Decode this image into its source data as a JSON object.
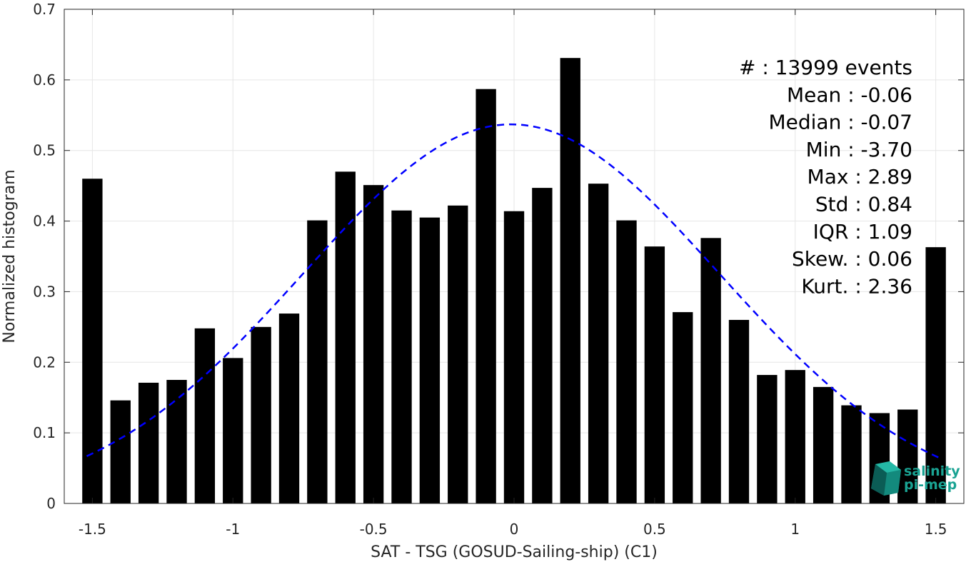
{
  "chart_data": {
    "type": "bar",
    "x": [
      -1.5,
      -1.4,
      -1.3,
      -1.2,
      -1.1,
      -1.0,
      -0.9,
      -0.8,
      -0.7,
      -0.6,
      -0.5,
      -0.4,
      -0.3,
      -0.2,
      -0.1,
      0.0,
      0.1,
      0.2,
      0.3,
      0.4,
      0.5,
      0.6,
      0.7,
      0.8,
      0.9,
      1.0,
      1.1,
      1.2,
      1.3,
      1.4,
      1.5
    ],
    "values": [
      0.46,
      0.146,
      0.171,
      0.175,
      0.248,
      0.206,
      0.25,
      0.269,
      0.401,
      0.47,
      0.451,
      0.415,
      0.405,
      0.422,
      0.587,
      0.414,
      0.447,
      0.631,
      0.453,
      0.401,
      0.364,
      0.271,
      0.376,
      0.26,
      0.182,
      0.189,
      0.165,
      0.139,
      0.128,
      0.133,
      0.363
    ],
    "fit_curve": {
      "type": "gaussian",
      "mean": -0.01,
      "std": 0.74,
      "peak": 0.537,
      "x_range": [
        -1.52,
        1.52
      ],
      "color": "#0000ff"
    },
    "xlabel": "SAT - TSG (GOSUD-Sailing-ship) (C1)",
    "ylabel": "Normalized histogram",
    "xlim": [
      -1.6,
      1.6
    ],
    "ylim": [
      0,
      0.7
    ],
    "xticks": [
      "-1.5",
      "-1",
      "-0.5",
      "0",
      "0.5",
      "1",
      "1.5"
    ],
    "xtick_values": [
      -1.5,
      -1,
      -0.5,
      0,
      0.5,
      1,
      1.5
    ],
    "yticks": [
      "0",
      "0.1",
      "0.2",
      "0.3",
      "0.4",
      "0.5",
      "0.6",
      "0.7"
    ],
    "ytick_values": [
      0,
      0.1,
      0.2,
      0.3,
      0.4,
      0.5,
      0.6,
      0.7
    ],
    "grid": true,
    "bar_color": "#000000"
  },
  "stats": [
    {
      "label": "#  :",
      "value": "13999 events"
    },
    {
      "label": "Mean :",
      "value": "-0.06"
    },
    {
      "label": "Median :",
      "value": "-0.07"
    },
    {
      "label": "Min :",
      "value": "-3.70"
    },
    {
      "label": "Max :",
      "value": "2.89"
    },
    {
      "label": "Std :",
      "value": "0.84"
    },
    {
      "label": "IQR :",
      "value": "1.09"
    },
    {
      "label": "Skew. :",
      "value": "0.06"
    },
    {
      "label": "Kurt. :",
      "value": "2.36"
    }
  ],
  "logo": {
    "line1": "salinity",
    "line2": "pi-mep",
    "color": "#1aa393"
  }
}
